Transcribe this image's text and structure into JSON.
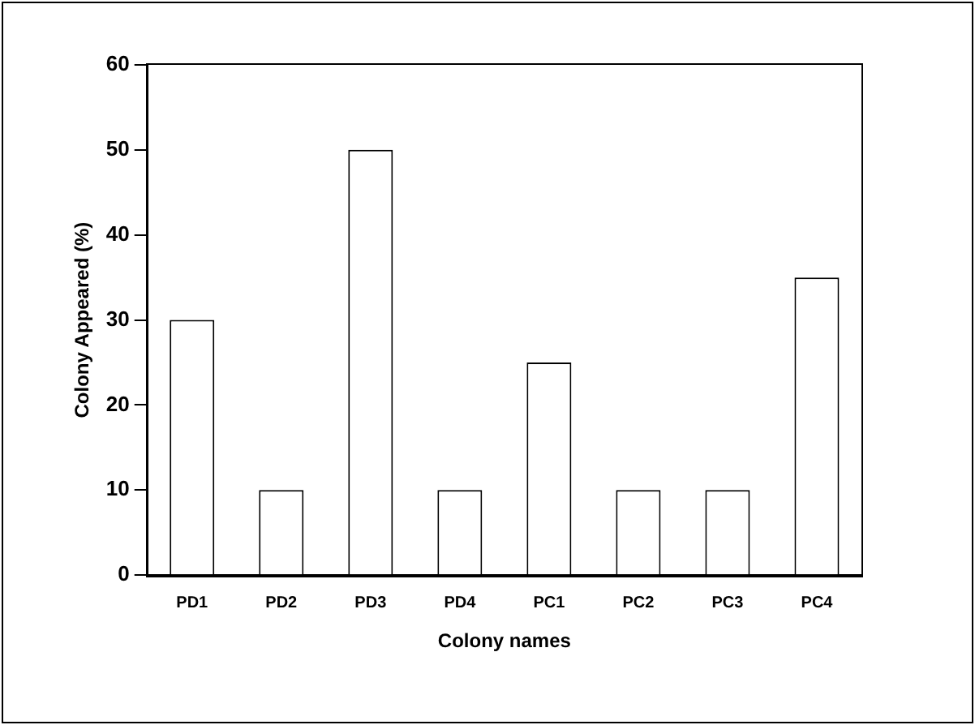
{
  "chart_data": {
    "type": "bar",
    "xlabel": "Colony names",
    "ylabel": "Colony Appeared (%)",
    "categories": [
      "PD1",
      "PD2",
      "PD3",
      "PD4",
      "PC1",
      "PC2",
      "PC3",
      "PC4"
    ],
    "values": [
      30,
      10,
      50,
      10,
      25,
      10,
      10,
      35
    ],
    "color": "#ffffff",
    "ylim": [
      0,
      60
    ],
    "yticks": [
      0,
      10,
      20,
      30,
      40,
      50,
      60
    ],
    "grid": false,
    "legend": false
  }
}
